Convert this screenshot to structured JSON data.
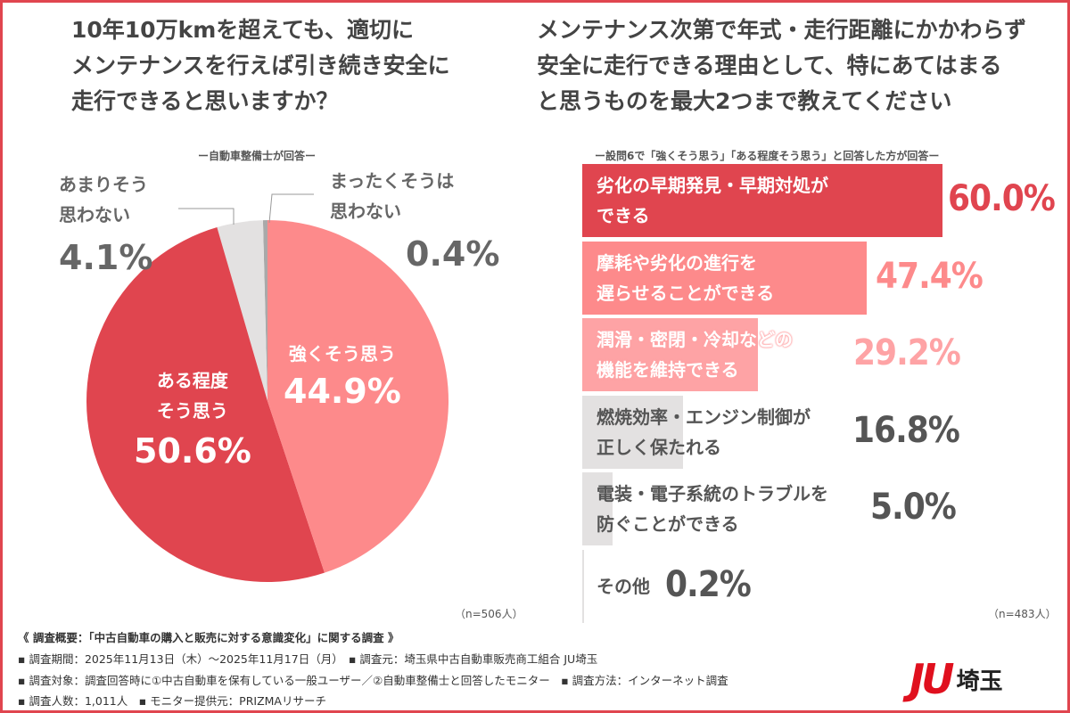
{
  "left": {
    "title": "10年10万kmを超えても、適切に\nメンテナンスを行えば引き続き安全に\n走行できると思いますか？",
    "subtitle": "ー自動車整備士が回答ー",
    "n": "（n=506人）"
  },
  "right": {
    "title": "メンテナンス次第で年式・走行距離にかかわらず\n安全に走行できる理由として、特にあてはまる\nと思うものを最大2つまで教えてください",
    "subtitle": "ー設問6で「強くそう思う」「ある程度そう思う」と回答した方が回答ー",
    "n": "（n=483人）"
  },
  "chart_data": [
    {
      "type": "pie",
      "slices": [
        {
          "label": "強くそう思う",
          "value": 44.9,
          "value_label": "44.9%",
          "color": "#fd8a8b"
        },
        {
          "label": "ある程度\nそう思う",
          "value": 50.6,
          "value_label": "50.6%",
          "color": "#e0454f"
        },
        {
          "label": "あまりそう\n思わない",
          "value": 4.1,
          "value_label": "4.1%",
          "color": "#e3e1e1"
        },
        {
          "label": "まったくそうは\n思わない",
          "value": 0.4,
          "value_label": "0.4%",
          "color": "#a9a9a9"
        }
      ]
    },
    {
      "type": "bar",
      "orientation": "horizontal",
      "xlim": [
        0,
        60
      ],
      "bars": [
        {
          "label": "劣化の早期発見・早期対処が\nできる",
          "value": 60.0,
          "value_label": "60.0%",
          "color": "#e0454f",
          "text_color": "#e0454f"
        },
        {
          "label": "摩耗や劣化の進行を\n遅らせることができる",
          "value": 47.4,
          "value_label": "47.4%",
          "color": "#fd8a8b",
          "text_color": "#fd8a8b"
        },
        {
          "label": "潤滑・密閉・冷却などの\n機能を維持できる",
          "value": 29.2,
          "value_label": "29.2%",
          "color": "#fea3a5",
          "text_color": "#fea3a5"
        },
        {
          "label": "燃焼効率・エンジン制御が\n正しく保たれる",
          "value": 16.8,
          "value_label": "16.8%",
          "color": "#e3e1e1",
          "text_color": "#555555"
        },
        {
          "label": "電装・電子系統のトラブルを\n防ぐことができる",
          "value": 5.0,
          "value_label": "5.0%",
          "color": "#e3e1e1",
          "text_color": "#555555"
        },
        {
          "label": "その他",
          "value": 0.2,
          "value_label": "0.2%",
          "color": "#e3e1e1",
          "text_color": "#555555"
        }
      ]
    }
  ],
  "footer": {
    "lines": [
      "《 調査概要：「中古自動車の購入と販売に対する意識変化」に関する調査 》",
      "▪ 調査期間：2025年11月13日（木）～2025年11月17日（月）　▪ 調査元：埼玉県中古自動車販売商工組合 JU埼玉",
      "▪ 調査対象：調査回答時に①中古自動車を保有している一般ユーザー／②自動車整備士と回答したモニター　▪ 調査方法：インターネット調査",
      "▪ 調査人数：1,011人　▪ モニター提供元：PRIZMAリサーチ"
    ]
  },
  "logo": {
    "mark": "JU",
    "text": "埼玉"
  }
}
